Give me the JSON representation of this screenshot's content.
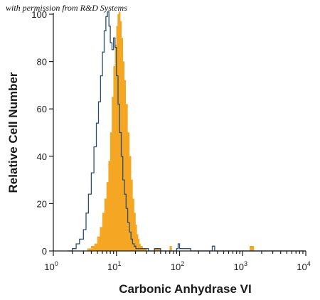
{
  "watermark": "with permission from R&D Systems",
  "chart_data": {
    "type": "histogram",
    "xlabel": "Carbonic Anhydrase VI",
    "ylabel": "Relative Cell Number",
    "x_scale": "log",
    "xlim": [
      1,
      10000
    ],
    "ylim": [
      0,
      100
    ],
    "x_ticks": [
      {
        "value": 1,
        "base": "10",
        "exp": "0"
      },
      {
        "value": 10,
        "base": "10",
        "exp": "1"
      },
      {
        "value": 100,
        "base": "10",
        "exp": "2"
      },
      {
        "value": 1000,
        "base": "10",
        "exp": "3"
      },
      {
        "value": 10000,
        "base": "10",
        "exp": "4"
      }
    ],
    "y_ticks": [
      0,
      20,
      40,
      60,
      80,
      100
    ],
    "series": [
      {
        "style": "outline",
        "color": "#2b4f6e",
        "x": [
          1.7,
          2.0,
          2.3,
          2.6,
          3.0,
          3.3,
          3.6,
          4.0,
          4.4,
          4.8,
          5.2,
          5.6,
          6.0,
          6.4,
          6.8,
          7.2,
          7.6,
          8.0,
          8.5,
          9.0,
          9.5,
          10.0,
          10.6,
          11.2,
          11.9,
          12.6,
          13.4,
          14.2,
          15.1,
          16.0,
          17.0,
          18.0,
          19.1,
          20.3,
          21.5,
          23.0,
          25.0,
          28.0,
          32.0,
          40.0,
          50.0,
          70.0,
          90.0,
          95.0,
          100.0,
          150.0,
          300.0,
          330.0,
          360.0,
          500.0,
          1000.0,
          5000.0,
          10000.0
        ],
        "y": [
          0,
          1,
          3,
          5,
          9,
          16,
          24,
          33,
          44,
          54,
          63,
          74,
          84,
          93,
          99,
          101,
          95,
          88,
          85,
          90,
          86,
          74,
          62,
          50,
          40,
          30,
          24,
          18,
          12,
          8,
          5,
          3,
          2,
          1,
          1,
          1,
          1,
          1,
          0,
          1,
          0,
          0,
          1,
          3,
          1,
          0,
          0,
          2,
          0,
          0,
          0,
          0,
          0
        ]
      },
      {
        "style": "filled",
        "color": "#f5a623",
        "x": [
          3.0,
          3.5,
          4.0,
          4.5,
          5.0,
          5.5,
          6.0,
          6.5,
          7.0,
          7.5,
          8.0,
          8.5,
          9.0,
          9.5,
          10.0,
          10.5,
          11.0,
          11.5,
          12.0,
          12.6,
          13.3,
          14.0,
          15.0,
          16.0,
          17.0,
          18.0,
          19.0,
          20.0,
          21.0,
          22.0,
          23.0,
          24.0,
          26.0,
          28.0,
          30.0,
          40.0,
          50.0,
          65.0,
          70.0,
          75.0,
          100.0,
          1000.0,
          1300.0,
          1500.0,
          10000.0
        ],
        "y": [
          0,
          1,
          2,
          3,
          6,
          10,
          16,
          22,
          29,
          38,
          50,
          65,
          78,
          87,
          95,
          100,
          101,
          97,
          90,
          80,
          72,
          62,
          50,
          40,
          30,
          22,
          16,
          11,
          7,
          5,
          3,
          2,
          1,
          1,
          0,
          1,
          0,
          0,
          2,
          0,
          0,
          0,
          2,
          0,
          0
        ]
      }
    ]
  }
}
